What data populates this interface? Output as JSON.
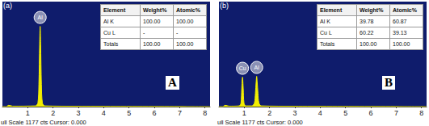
{
  "chart_data": [
    {
      "type": "area",
      "title": "(a)",
      "x": [
        0,
        0.15,
        0.25,
        0.4,
        1.3,
        1.4,
        1.44,
        1.47,
        1.49,
        1.51,
        1.54,
        1.58,
        1.68,
        3,
        8.2
      ],
      "values": [
        0,
        0,
        15,
        5,
        8,
        40,
        250,
        700,
        900,
        700,
        250,
        40,
        8,
        4,
        0
      ],
      "color": "#f2ee00",
      "xlim": [
        0,
        8.2
      ],
      "ylim": [
        0,
        1177
      ],
      "xticks": [
        1,
        2,
        3,
        4,
        5,
        6,
        7,
        8
      ],
      "tick_labels": "x",
      "grid": false,
      "peak_labels": [
        {
          "text": "Al",
          "x": 1.49
        }
      ],
      "table": {
        "rows": [
          [
            "Element",
            "Weight%",
            "Atomic%"
          ],
          [
            "Al K",
            "100.00",
            "100.00"
          ],
          [
            "Cu L",
            "-",
            "-"
          ],
          [
            "Totals",
            "100.00",
            "100.00"
          ]
        ]
      },
      "panel_label": "A",
      "footer": "ull Scale 1177 cts Cursor: 0.000"
    },
    {
      "type": "area",
      "title": "(b)",
      "x": [
        0,
        0.15,
        0.25,
        0.4,
        0.8,
        0.87,
        0.9,
        0.93,
        0.96,
        0.99,
        1.06,
        1.3,
        1.4,
        1.44,
        1.47,
        1.49,
        1.51,
        1.54,
        1.58,
        1.68,
        3,
        8.2
      ],
      "values": [
        0,
        0,
        15,
        5,
        8,
        40,
        200,
        330,
        200,
        40,
        8,
        8,
        40,
        150,
        280,
        340,
        280,
        150,
        40,
        8,
        4,
        0
      ],
      "color": "#f2ee00",
      "xlim": [
        0,
        8.2
      ],
      "ylim": [
        0,
        1177
      ],
      "xticks": [
        1,
        2,
        3,
        4,
        5,
        6,
        7,
        8
      ],
      "tick_labels": "x",
      "grid": false,
      "peak_labels": [
        {
          "text": "Cu",
          "x": 0.93
        },
        {
          "text": "Al",
          "x": 1.49
        }
      ],
      "table": {
        "rows": [
          [
            "Element",
            "Weight%",
            "Atomic%"
          ],
          [
            "Al K",
            "39.78",
            "60.87"
          ],
          [
            "Cu L",
            "60.22",
            "39.13"
          ],
          [
            "Totals",
            "100.00",
            "100.00"
          ]
        ]
      },
      "panel_label": "B",
      "footer": "ull Scale 1177 cts Cursor: 0.000"
    }
  ]
}
